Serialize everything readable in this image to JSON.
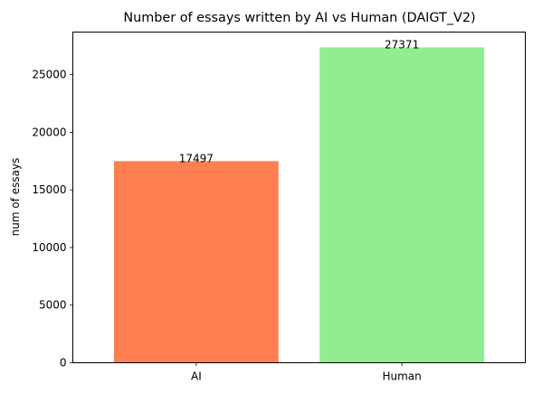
{
  "chart_data": {
    "type": "bar",
    "title": "Number of essays written by AI vs Human (DAIGT_V2)",
    "xlabel": "",
    "ylabel": "num of essays",
    "categories": [
      "AI",
      "Human"
    ],
    "values": [
      17497,
      27371
    ],
    "data_labels": [
      "17497",
      "27371"
    ],
    "bar_colors": [
      "#ff7f50",
      "#90ee90"
    ],
    "ylim": [
      0,
      28700
    ],
    "yticks": [
      0,
      5000,
      10000,
      15000,
      20000,
      25000
    ],
    "ytick_labels": [
      "0",
      "5000",
      "10000",
      "15000",
      "20000",
      "25000"
    ],
    "grid": false,
    "legend": false
  }
}
